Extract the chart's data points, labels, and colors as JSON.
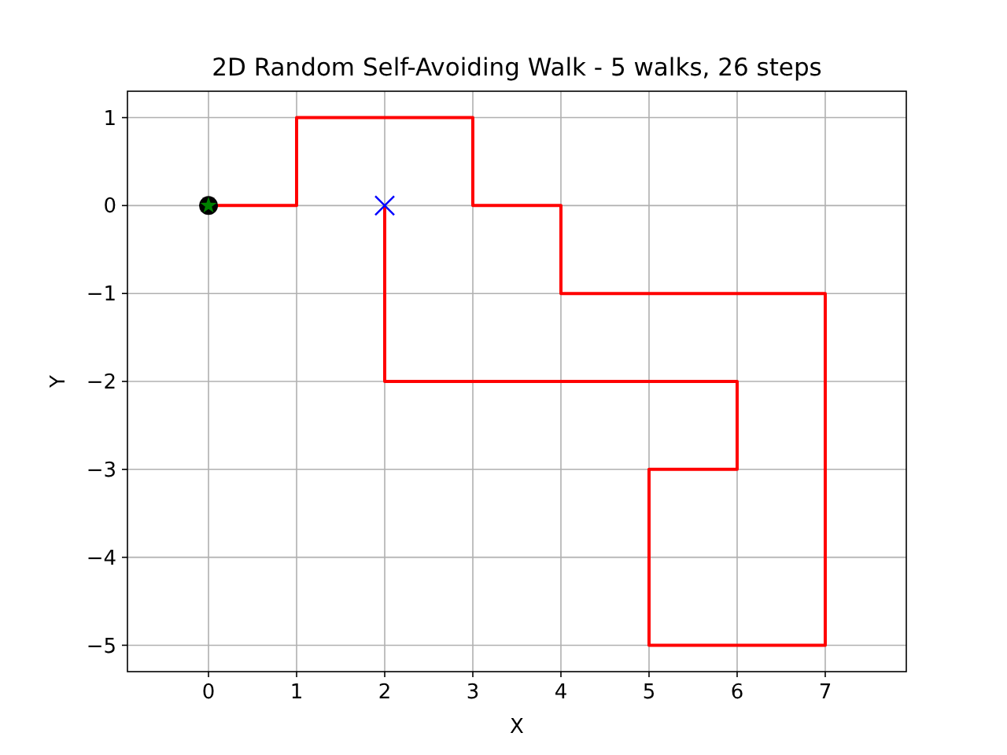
{
  "chart_data": {
    "type": "line",
    "title": "2D Random Self-Avoiding Walk - 5 walks, 26 steps",
    "xlabel": "X",
    "ylabel": "Y",
    "xlim": [
      -0.92,
      7.92
    ],
    "ylim": [
      -5.3,
      1.3
    ],
    "xticks": [
      0,
      1,
      2,
      3,
      4,
      5,
      6,
      7
    ],
    "yticks": [
      -5,
      -4,
      -3,
      -2,
      -1,
      0,
      1
    ],
    "grid": true,
    "series": [
      {
        "color": "#ff0000",
        "marker": "none",
        "line_style": "solid",
        "x": [
          0,
          1,
          1,
          2,
          3,
          3,
          4,
          4,
          5,
          6,
          7,
          7,
          7,
          7,
          7,
          6,
          5,
          5,
          5,
          6,
          6,
          5,
          4,
          3,
          2,
          2,
          2
        ],
        "values": [
          0,
          0,
          1,
          1,
          1,
          0,
          0,
          -1,
          -1,
          -1,
          -1,
          -2,
          -3,
          -4,
          -5,
          -5,
          -5,
          -4,
          -3,
          -3,
          -2,
          -2,
          -2,
          -2,
          -2,
          -1,
          0
        ]
      },
      {
        "type": "scatter",
        "color": "#000000",
        "marker": "circle",
        "x": [
          0
        ],
        "values": [
          0
        ]
      },
      {
        "type": "scatter",
        "color": "#008000",
        "marker": "star",
        "x": [
          0
        ],
        "values": [
          0
        ]
      },
      {
        "type": "scatter",
        "color": "#0000ff",
        "marker": "cross",
        "x": [
          2
        ],
        "values": [
          0
        ]
      }
    ]
  }
}
